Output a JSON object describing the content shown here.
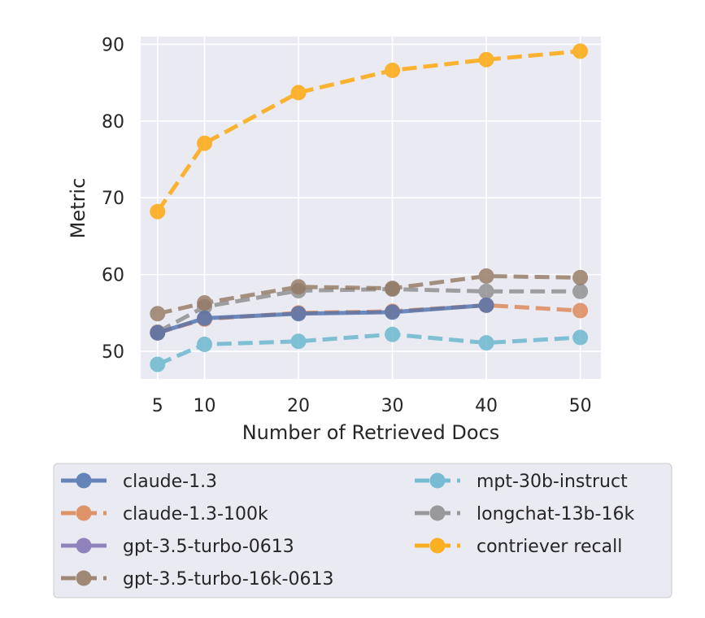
{
  "chart_data": {
    "type": "line",
    "title": "",
    "xlabel": "Number of Retrieved Docs",
    "ylabel": "Metric",
    "x": [
      5,
      10,
      20,
      30,
      40,
      50
    ],
    "xticks": [
      "5",
      "10",
      "20",
      "30",
      "40",
      "50"
    ],
    "yticks": [
      "50",
      "60",
      "70",
      "80",
      "90"
    ],
    "xlim": [
      3.2,
      52.2
    ],
    "ylim": [
      46.4,
      91.0
    ],
    "grid": true,
    "legend_position": "bottom",
    "series": [
      {
        "name": "claude-1.3",
        "values": [
          52.4,
          54.3,
          54.9,
          55.1,
          56.0,
          null
        ],
        "color": "#4c72b0",
        "style": "solid"
      },
      {
        "name": "claude-1.3-100k",
        "values": [
          52.4,
          54.2,
          55.0,
          55.2,
          56.0,
          55.3
        ],
        "color": "#dd8452",
        "style": "dashed"
      },
      {
        "name": "gpt-3.5-turbo-0613",
        "values": [
          null,
          null,
          null,
          null,
          null,
          null
        ],
        "color": "#8172b3",
        "style": "solid"
      },
      {
        "name": "gpt-3.5-turbo-16k-0613",
        "values": [
          54.9,
          56.3,
          58.4,
          58.2,
          59.8,
          59.6
        ],
        "color": "#937860",
        "style": "dashed"
      },
      {
        "name": "mpt-30b-instruct",
        "values": [
          48.3,
          50.9,
          51.3,
          52.2,
          51.1,
          51.8
        ],
        "color": "#64b5cd",
        "style": "dashed"
      },
      {
        "name": "longchat-13b-16k",
        "values": [
          52.5,
          55.8,
          57.9,
          58.1,
          57.8,
          57.8
        ],
        "color": "#8c8c8c",
        "style": "dashed"
      },
      {
        "name": "contriever recall",
        "values": [
          68.2,
          77.1,
          83.7,
          86.6,
          88.0,
          89.1
        ],
        "color": "#ffa500",
        "style": "dashed"
      }
    ]
  }
}
